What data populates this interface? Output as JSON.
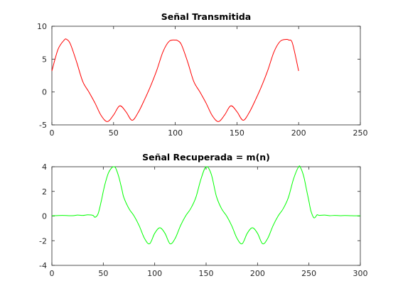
{
  "chart_data": [
    {
      "type": "line",
      "title": "Señal Transmitida",
      "xlabel": "",
      "ylabel": "",
      "xlim": [
        0,
        250
      ],
      "ylim": [
        -5,
        10
      ],
      "xticks": [
        0,
        50,
        100,
        150,
        200,
        250
      ],
      "yticks": [
        -5,
        0,
        5,
        10
      ],
      "grid": false,
      "series": [
        {
          "color": "#ff0000",
          "x": [
            0,
            5,
            10,
            12,
            15,
            20,
            25,
            30,
            35,
            40,
            45,
            50,
            55,
            60,
            65,
            70,
            75,
            80,
            85,
            90,
            95,
            100,
            102,
            105,
            110,
            115,
            120,
            125,
            130,
            135,
            140,
            145,
            150,
            155,
            160,
            165,
            170,
            175,
            180,
            185,
            190,
            192,
            195,
            200
          ],
          "y": [
            3.2,
            6.5,
            7.9,
            8.0,
            7.3,
            4.6,
            1.6,
            0.0,
            -1.7,
            -3.6,
            -4.5,
            -3.5,
            -2.1,
            -3.0,
            -4.3,
            -3.1,
            -1.2,
            0.9,
            3.3,
            6.1,
            7.7,
            7.9,
            7.8,
            7.2,
            4.6,
            1.6,
            0.0,
            -1.7,
            -3.6,
            -4.5,
            -3.5,
            -2.1,
            -3.0,
            -4.3,
            -3.1,
            -1.2,
            0.9,
            3.3,
            6.1,
            7.7,
            8.0,
            7.9,
            7.4,
            3.2
          ]
        }
      ]
    },
    {
      "type": "line",
      "title": "Señal Recuperada = m(n)",
      "xlabel": "",
      "ylabel": "",
      "xlim": [
        0,
        300
      ],
      "ylim": [
        -4,
        4
      ],
      "xticks": [
        0,
        50,
        100,
        150,
        200,
        250,
        300
      ],
      "yticks": [
        -4,
        -2,
        0,
        2,
        4
      ],
      "grid": false,
      "series": [
        {
          "color": "#00ff00",
          "x": [
            0,
            10,
            20,
            25,
            30,
            35,
            40,
            42,
            45,
            48,
            50,
            52,
            55,
            58,
            60,
            62,
            65,
            68,
            70,
            75,
            80,
            85,
            90,
            95,
            100,
            105,
            110,
            115,
            120,
            125,
            130,
            135,
            140,
            145,
            150,
            155,
            160,
            165,
            170,
            175,
            180,
            185,
            190,
            195,
            200,
            205,
            210,
            215,
            220,
            225,
            230,
            235,
            240,
            242,
            245,
            248,
            250,
            252,
            255,
            258,
            260,
            265,
            270,
            275,
            280,
            285,
            290,
            295,
            300
          ],
          "y": [
            0.02,
            0.05,
            0.03,
            0.08,
            0.05,
            0.1,
            0.05,
            -0.1,
            0.2,
            1.2,
            2.0,
            2.7,
            3.5,
            3.9,
            4.0,
            3.9,
            3.2,
            2.2,
            1.5,
            0.6,
            0.0,
            -0.8,
            -1.8,
            -2.25,
            -1.4,
            -0.95,
            -1.4,
            -2.25,
            -1.8,
            -0.8,
            0.0,
            0.6,
            1.5,
            3.0,
            4.0,
            3.4,
            1.6,
            0.6,
            0.0,
            -0.8,
            -1.8,
            -2.25,
            -1.4,
            -0.95,
            -1.4,
            -2.25,
            -1.8,
            -0.8,
            0.0,
            0.6,
            1.5,
            3.0,
            4.0,
            3.9,
            3.2,
            2.0,
            1.2,
            0.4,
            -0.15,
            0.1,
            0.05,
            0.08,
            0.03,
            0.05,
            0.03,
            0.04,
            0.03,
            0.02,
            0.02
          ]
        }
      ]
    }
  ]
}
